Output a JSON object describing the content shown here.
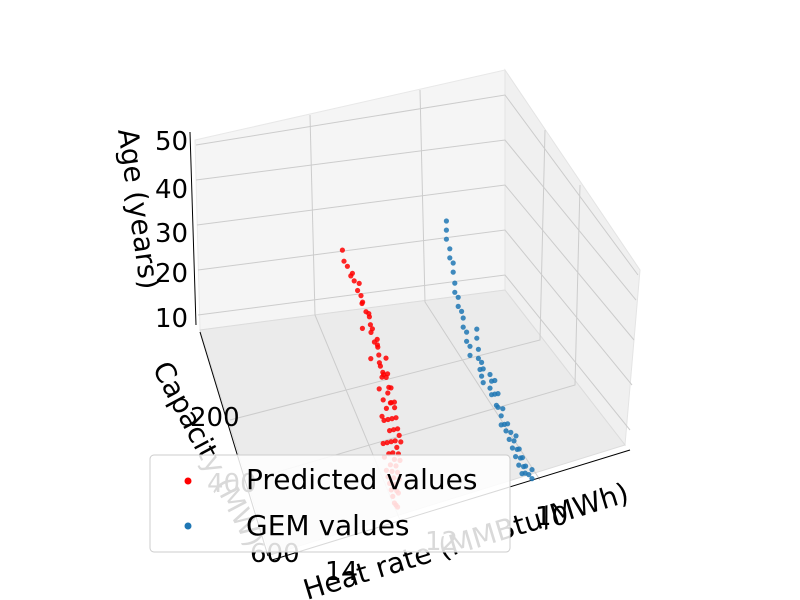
{
  "chart_data": {
    "type": "scatter",
    "projection": "3d",
    "grid": true,
    "legend_placement": "lower-left",
    "axes": {
      "x": {
        "label": "Heat rate (MMBtu/MWh)",
        "ticks": [
          10,
          12,
          14
        ],
        "range": [
          8.5,
          15
        ]
      },
      "y": {
        "label": "Capacity (MW)",
        "ticks": [
          200,
          400,
          600
        ],
        "range": [
          100,
          650
        ]
      },
      "z": {
        "label": "Age (years)",
        "ticks": [
          10,
          20,
          30,
          40,
          50
        ],
        "range": [
          5,
          52
        ]
      }
    },
    "series": [
      {
        "name": "Predicted values",
        "color": "#ff0000",
        "points": [
          {
            "x": 14.6,
            "y": 140,
            "z": 48
          },
          {
            "x": 14.5,
            "y": 150,
            "z": 46
          },
          {
            "x": 14.4,
            "y": 155,
            "z": 45
          },
          {
            "x": 14.3,
            "y": 160,
            "z": 43
          },
          {
            "x": 14.2,
            "y": 165,
            "z": 42
          },
          {
            "x": 14.1,
            "y": 170,
            "z": 40
          },
          {
            "x": 14.0,
            "y": 175,
            "z": 39
          },
          {
            "x": 14.2,
            "y": 170,
            "z": 44
          },
          {
            "x": 14.0,
            "y": 180,
            "z": 42
          },
          {
            "x": 13.9,
            "y": 185,
            "z": 38
          },
          {
            "x": 13.8,
            "y": 190,
            "z": 36
          },
          {
            "x": 13.7,
            "y": 195,
            "z": 35
          },
          {
            "x": 13.8,
            "y": 200,
            "z": 33
          },
          {
            "x": 13.6,
            "y": 205,
            "z": 32
          },
          {
            "x": 13.5,
            "y": 210,
            "z": 30
          },
          {
            "x": 13.4,
            "y": 215,
            "z": 29
          },
          {
            "x": 13.5,
            "y": 220,
            "z": 27
          },
          {
            "x": 13.3,
            "y": 225,
            "z": 26
          },
          {
            "x": 13.2,
            "y": 230,
            "z": 24
          },
          {
            "x": 13.1,
            "y": 235,
            "z": 23
          },
          {
            "x": 13.2,
            "y": 240,
            "z": 21
          },
          {
            "x": 13.0,
            "y": 245,
            "z": 20
          },
          {
            "x": 12.9,
            "y": 250,
            "z": 18
          },
          {
            "x": 12.8,
            "y": 255,
            "z": 17
          },
          {
            "x": 13.4,
            "y": 230,
            "z": 34
          },
          {
            "x": 13.2,
            "y": 245,
            "z": 31
          },
          {
            "x": 13.0,
            "y": 250,
            "z": 28
          },
          {
            "x": 12.9,
            "y": 260,
            "z": 25
          },
          {
            "x": 12.8,
            "y": 265,
            "z": 22
          },
          {
            "x": 12.7,
            "y": 270,
            "z": 19
          },
          {
            "x": 12.6,
            "y": 280,
            "z": 16
          },
          {
            "x": 12.5,
            "y": 290,
            "z": 14
          },
          {
            "x": 12.4,
            "y": 300,
            "z": 13
          },
          {
            "x": 12.3,
            "y": 310,
            "z": 12
          },
          {
            "x": 12.6,
            "y": 300,
            "z": 24
          },
          {
            "x": 12.5,
            "y": 310,
            "z": 21
          },
          {
            "x": 12.4,
            "y": 320,
            "z": 18
          },
          {
            "x": 12.3,
            "y": 330,
            "z": 16
          },
          {
            "x": 12.2,
            "y": 340,
            "z": 14
          },
          {
            "x": 12.1,
            "y": 350,
            "z": 13
          },
          {
            "x": 12.0,
            "y": 360,
            "z": 12
          },
          {
            "x": 11.9,
            "y": 370,
            "z": 11
          },
          {
            "x": 12.2,
            "y": 360,
            "z": 20
          },
          {
            "x": 12.1,
            "y": 370,
            "z": 18
          },
          {
            "x": 12.0,
            "y": 380,
            "z": 16
          },
          {
            "x": 11.9,
            "y": 390,
            "z": 14
          },
          {
            "x": 11.8,
            "y": 400,
            "z": 13
          },
          {
            "x": 11.7,
            "y": 410,
            "z": 12
          },
          {
            "x": 11.6,
            "y": 420,
            "z": 11
          },
          {
            "x": 11.5,
            "y": 430,
            "z": 10
          },
          {
            "x": 11.8,
            "y": 420,
            "z": 18
          },
          {
            "x": 11.7,
            "y": 430,
            "z": 16
          },
          {
            "x": 11.6,
            "y": 440,
            "z": 14
          },
          {
            "x": 11.5,
            "y": 450,
            "z": 13
          },
          {
            "x": 11.4,
            "y": 460,
            "z": 12
          },
          {
            "x": 11.3,
            "y": 470,
            "z": 11
          },
          {
            "x": 11.2,
            "y": 480,
            "z": 10
          },
          {
            "x": 11.1,
            "y": 490,
            "z": 10
          },
          {
            "x": 11.4,
            "y": 480,
            "z": 15
          },
          {
            "x": 11.3,
            "y": 490,
            "z": 14
          },
          {
            "x": 11.2,
            "y": 500,
            "z": 13
          },
          {
            "x": 11.1,
            "y": 510,
            "z": 12
          },
          {
            "x": 11.0,
            "y": 520,
            "z": 11
          },
          {
            "x": 10.9,
            "y": 530,
            "z": 10
          },
          {
            "x": 10.8,
            "y": 540,
            "z": 10
          },
          {
            "x": 10.7,
            "y": 550,
            "z": 10
          },
          {
            "x": 13.6,
            "y": 230,
            "z": 40
          },
          {
            "x": 13.4,
            "y": 240,
            "z": 38
          },
          {
            "x": 13.3,
            "y": 250,
            "z": 36
          },
          {
            "x": 13.1,
            "y": 260,
            "z": 33
          },
          {
            "x": 13.0,
            "y": 270,
            "z": 30
          },
          {
            "x": 12.9,
            "y": 280,
            "z": 28
          },
          {
            "x": 12.8,
            "y": 290,
            "z": 26
          },
          {
            "x": 12.7,
            "y": 300,
            "z": 27
          },
          {
            "x": 12.5,
            "y": 330,
            "z": 23
          },
          {
            "x": 12.3,
            "y": 350,
            "z": 22
          },
          {
            "x": 12.0,
            "y": 400,
            "z": 22
          },
          {
            "x": 11.9,
            "y": 420,
            "z": 24
          },
          {
            "x": 11.6,
            "y": 460,
            "z": 20
          },
          {
            "x": 11.3,
            "y": 500,
            "z": 19
          }
        ]
      },
      {
        "name": "GEM values",
        "color": "#1f77b4",
        "points": [
          {
            "x": 12.6,
            "y": 140,
            "z": 50
          },
          {
            "x": 12.6,
            "y": 140,
            "z": 48
          },
          {
            "x": 12.6,
            "y": 140,
            "z": 46
          },
          {
            "x": 12.5,
            "y": 145,
            "z": 44
          },
          {
            "x": 12.5,
            "y": 145,
            "z": 42
          },
          {
            "x": 12.4,
            "y": 150,
            "z": 41
          },
          {
            "x": 12.4,
            "y": 150,
            "z": 39
          },
          {
            "x": 12.3,
            "y": 160,
            "z": 37
          },
          {
            "x": 12.3,
            "y": 160,
            "z": 35
          },
          {
            "x": 12.2,
            "y": 165,
            "z": 34
          },
          {
            "x": 12.2,
            "y": 165,
            "z": 32
          },
          {
            "x": 12.1,
            "y": 170,
            "z": 31
          },
          {
            "x": 12.0,
            "y": 180,
            "z": 30
          },
          {
            "x": 12.0,
            "y": 180,
            "z": 28
          },
          {
            "x": 11.9,
            "y": 185,
            "z": 27
          },
          {
            "x": 11.9,
            "y": 185,
            "z": 25
          },
          {
            "x": 11.8,
            "y": 190,
            "z": 24
          },
          {
            "x": 11.8,
            "y": 190,
            "z": 22
          },
          {
            "x": 11.6,
            "y": 200,
            "z": 28
          },
          {
            "x": 11.6,
            "y": 200,
            "z": 26
          },
          {
            "x": 11.5,
            "y": 210,
            "z": 24
          },
          {
            "x": 11.5,
            "y": 210,
            "z": 22
          },
          {
            "x": 11.4,
            "y": 220,
            "z": 20
          },
          {
            "x": 11.3,
            "y": 230,
            "z": 22
          },
          {
            "x": 11.3,
            "y": 230,
            "z": 19
          },
          {
            "x": 11.2,
            "y": 240,
            "z": 21
          },
          {
            "x": 11.2,
            "y": 240,
            "z": 18
          },
          {
            "x": 11.0,
            "y": 250,
            "z": 20
          },
          {
            "x": 11.0,
            "y": 250,
            "z": 17
          },
          {
            "x": 10.9,
            "y": 260,
            "z": 19
          },
          {
            "x": 10.9,
            "y": 260,
            "z": 16
          },
          {
            "x": 10.7,
            "y": 280,
            "z": 20
          },
          {
            "x": 10.7,
            "y": 280,
            "z": 17
          },
          {
            "x": 10.6,
            "y": 290,
            "z": 15
          },
          {
            "x": 10.5,
            "y": 300,
            "z": 18
          },
          {
            "x": 10.5,
            "y": 300,
            "z": 15
          },
          {
            "x": 10.3,
            "y": 320,
            "z": 14
          },
          {
            "x": 10.3,
            "y": 320,
            "z": 12
          },
          {
            "x": 10.2,
            "y": 330,
            "z": 16
          },
          {
            "x": 10.1,
            "y": 340,
            "z": 13
          },
          {
            "x": 10.0,
            "y": 350,
            "z": 12
          },
          {
            "x": 9.9,
            "y": 360,
            "z": 14
          },
          {
            "x": 9.8,
            "y": 370,
            "z": 11
          },
          {
            "x": 9.7,
            "y": 380,
            "z": 13
          },
          {
            "x": 9.6,
            "y": 390,
            "z": 10
          },
          {
            "x": 9.5,
            "y": 400,
            "z": 12
          },
          {
            "x": 9.4,
            "y": 410,
            "z": 9
          },
          {
            "x": 9.3,
            "y": 420,
            "z": 11
          },
          {
            "x": 9.2,
            "y": 430,
            "z": 8
          },
          {
            "x": 9.1,
            "y": 440,
            "z": 10
          },
          {
            "x": 9.0,
            "y": 450,
            "z": 7
          },
          {
            "x": 8.9,
            "y": 460,
            "z": 9
          },
          {
            "x": 8.8,
            "y": 470,
            "z": 8
          },
          {
            "x": 9.6,
            "y": 380,
            "z": 12
          },
          {
            "x": 9.4,
            "y": 400,
            "z": 10
          },
          {
            "x": 9.2,
            "y": 420,
            "z": 9
          },
          {
            "x": 9.0,
            "y": 440,
            "z": 8
          },
          {
            "x": 8.8,
            "y": 460,
            "z": 7
          },
          {
            "x": 8.6,
            "y": 480,
            "z": 7
          },
          {
            "x": 8.6,
            "y": 480,
            "z": 9
          }
        ]
      }
    ]
  }
}
